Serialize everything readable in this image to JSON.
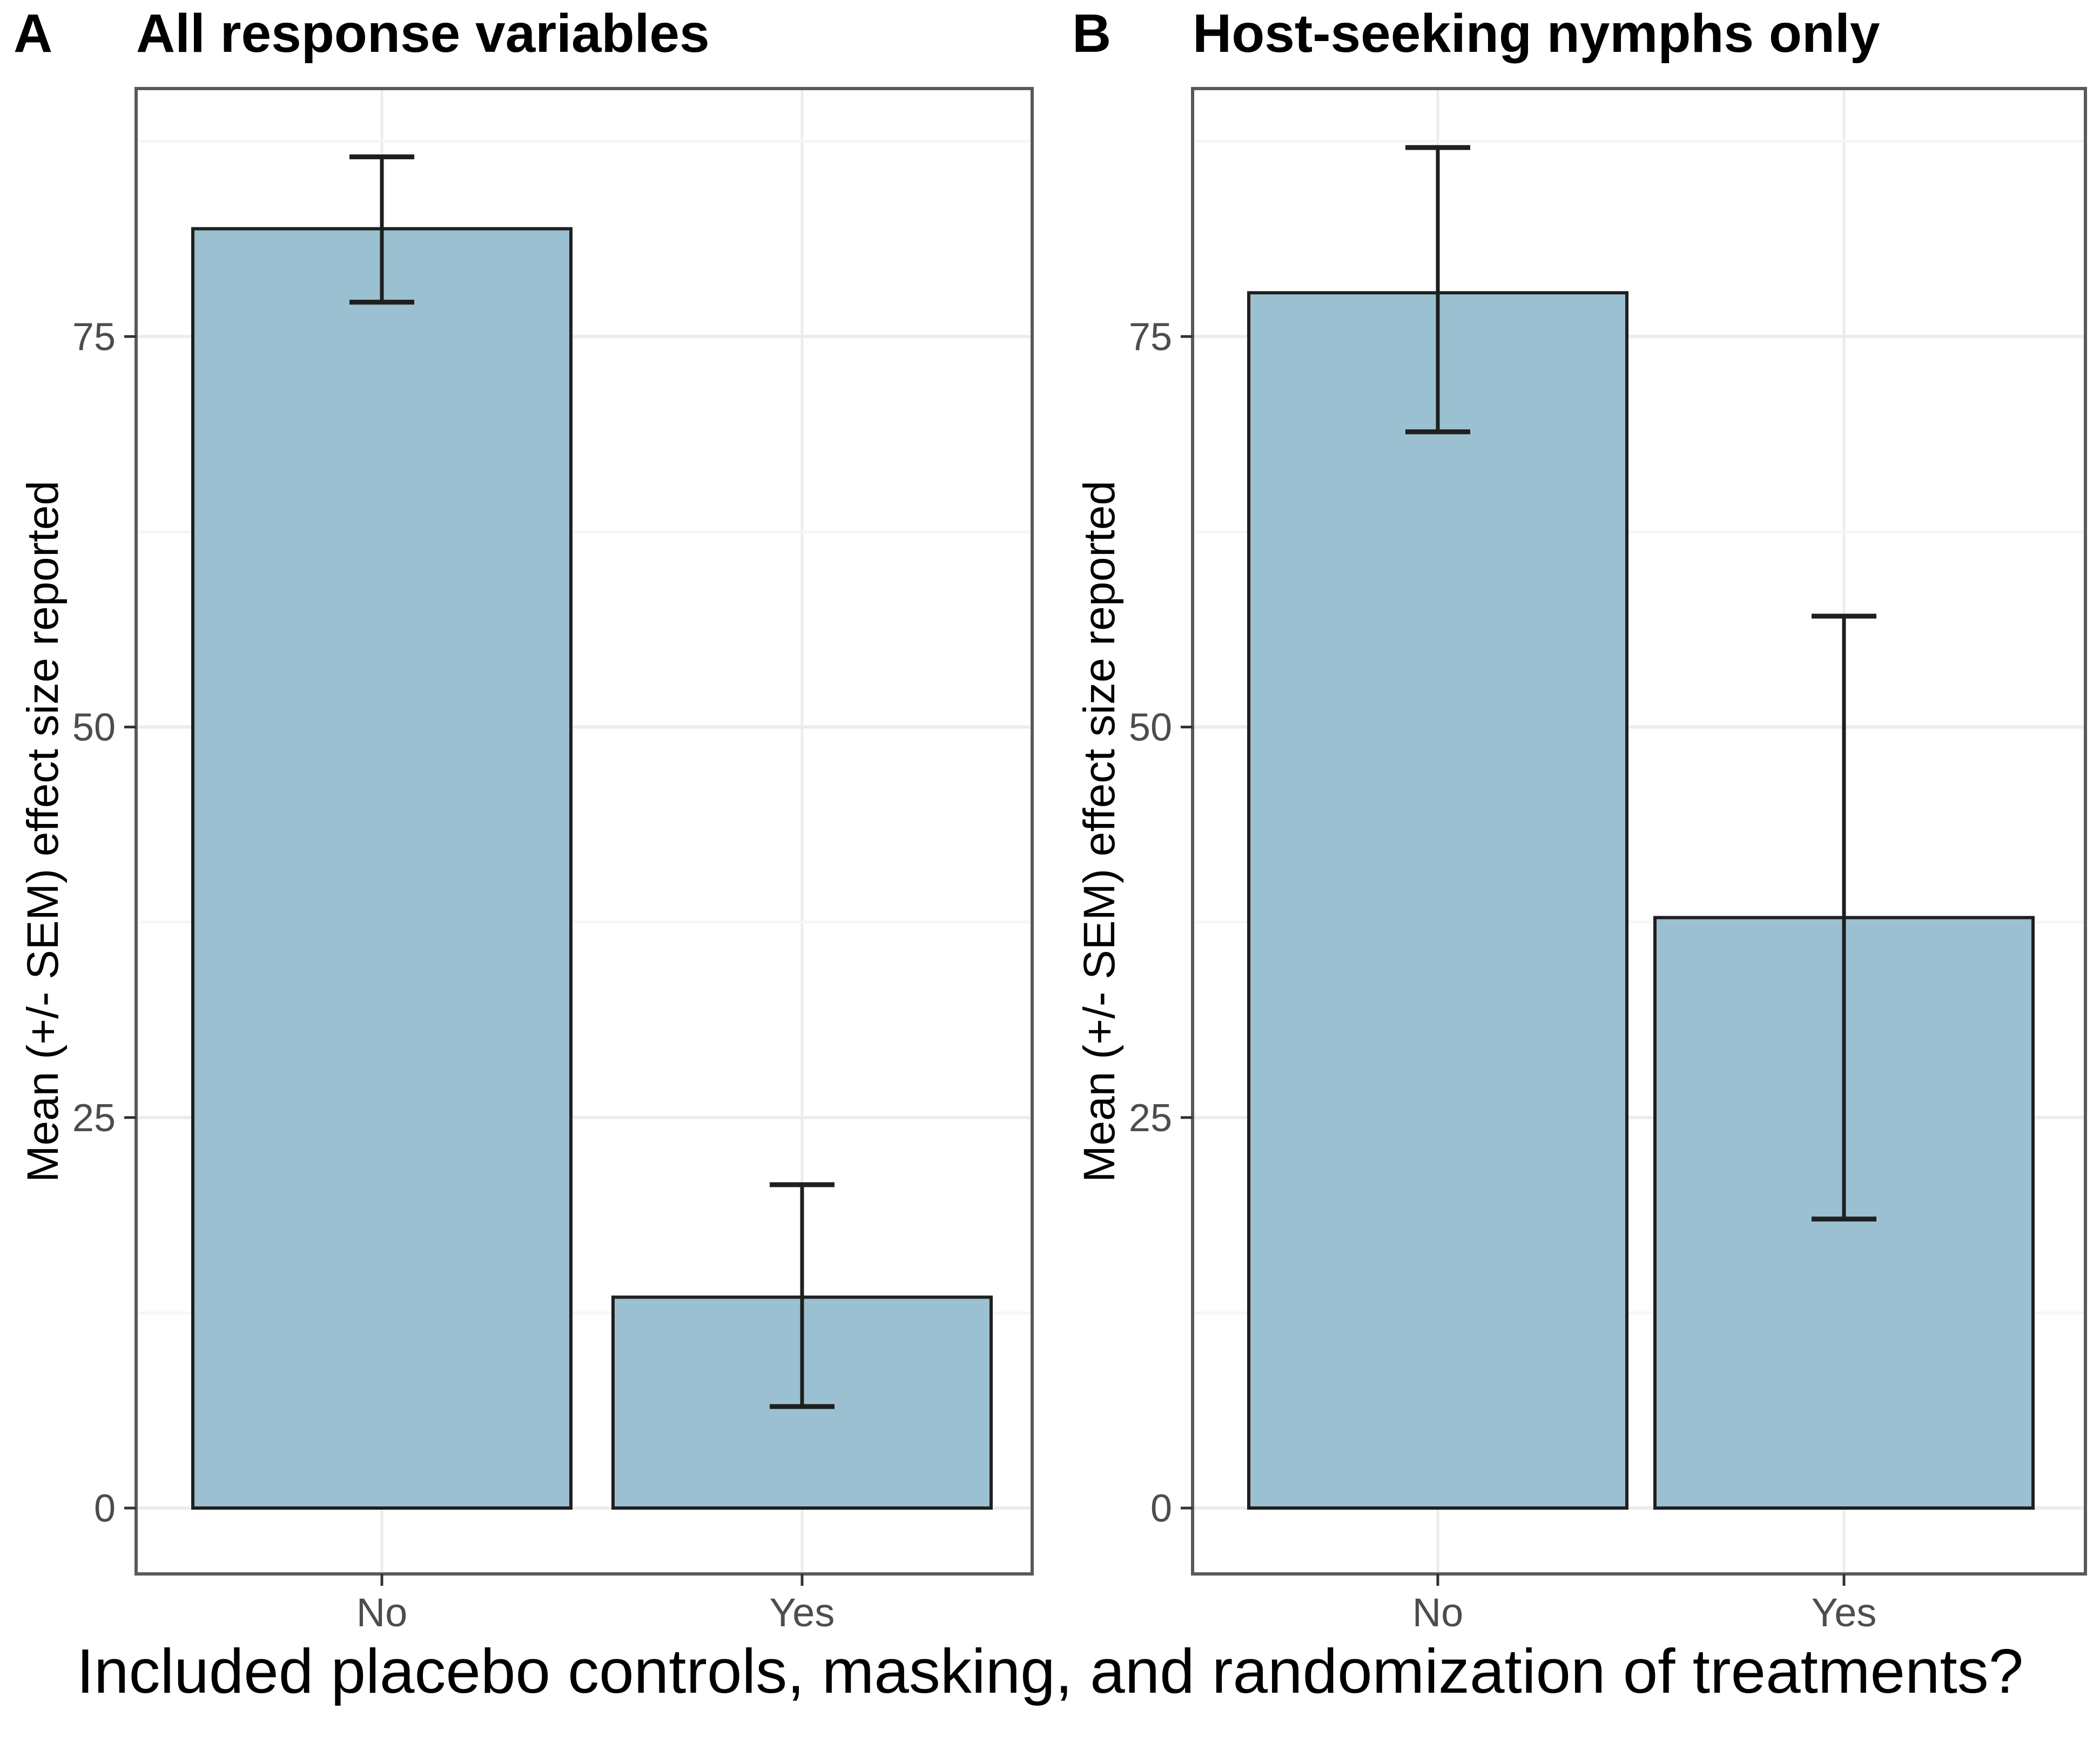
{
  "figure": {
    "background": "#ffffff",
    "caption": "Included placebo controls, masking, and randomization of treatments?"
  },
  "chart_data": [
    {
      "type": "bar",
      "panel_tag": "A",
      "title": "All response variables",
      "categories": [
        "No",
        "Yes"
      ],
      "values": [
        81.9,
        13.5
      ],
      "error_low": [
        77.2,
        6.5
      ],
      "error_high": [
        86.5,
        20.7
      ],
      "xlabel": "Included placebo controls, masking, and randomization of treatments?",
      "ylabel": "Mean (+/- SEM) effect size reported",
      "ylim": [
        -4.2,
        90.9
      ],
      "yticks": [
        0,
        25,
        50,
        75
      ],
      "minor_gridlines": [
        12.5,
        37.5,
        62.5,
        87.5
      ],
      "legend": "none",
      "grid": "on"
    },
    {
      "type": "bar",
      "panel_tag": "B",
      "title": "Host-seeking nymphs only",
      "categories": [
        "No",
        "Yes"
      ],
      "values": [
        77.8,
        37.8
      ],
      "error_low": [
        68.9,
        18.5
      ],
      "error_high": [
        87.1,
        57.1
      ],
      "xlabel": "Included placebo controls, masking, and randomization of treatments?",
      "ylabel": "Mean (+/- SEM) effect size reported",
      "ylim": [
        -4.2,
        90.9
      ],
      "yticks": [
        0,
        25,
        50,
        75
      ],
      "minor_gridlines": [
        12.5,
        37.5,
        62.5,
        87.5
      ],
      "legend": "none",
      "grid": "on"
    }
  ],
  "style": {
    "bar_fill": "#9BC0D1",
    "bar_stroke": "#1F1F1F",
    "error_color": "#1F1F1F",
    "panel_border": "#595959",
    "grid_major": "#ECECEC",
    "grid_minor": "#F5F5F5",
    "tick_color": "#333333",
    "tick_label_color": "#4D4D4D",
    "text_color": "#000000"
  }
}
